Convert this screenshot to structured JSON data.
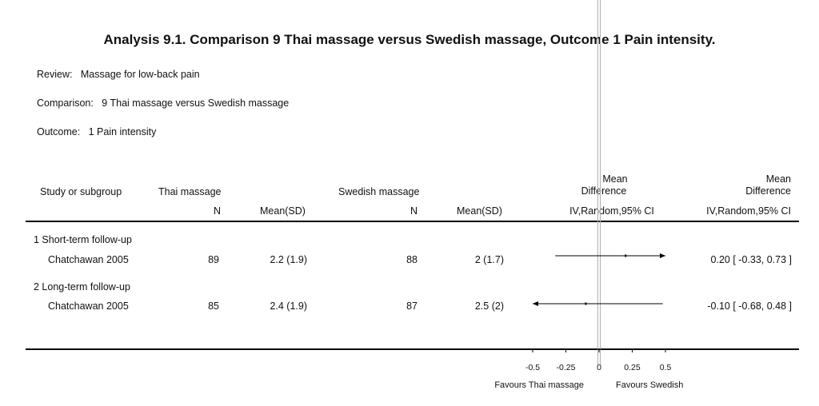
{
  "title": "Analysis 9.1.   Comparison 9 Thai massage versus Swedish massage, Outcome 1 Pain intensity.",
  "meta": {
    "review_label": "Review:",
    "review_value": "Massage for low-back pain",
    "comparison_label": "Comparison:",
    "comparison_value": "9 Thai massage versus Swedish massage",
    "outcome_label": "Outcome:",
    "outcome_value": "1 Pain intensity"
  },
  "headers": {
    "study": "Study or subgroup",
    "group1": "Thai massage",
    "group2": "Swedish massage",
    "n1": "N",
    "mean1": "Mean(SD)",
    "n2": "N",
    "mean2": "Mean(SD)",
    "md_plot_line1": "Mean",
    "md_plot_line2": "Difference",
    "md_plot_method": "IV,Random,95% CI",
    "md_text_line1": "Mean",
    "md_text_line2": "Difference",
    "md_text_method": "IV,Random,95% CI"
  },
  "subgroups": [
    {
      "label": "1 Short-term follow-up",
      "study": "Chatchawan 2005",
      "n1": "89",
      "mean1": "2.2 (1.9)",
      "n2": "88",
      "mean2": "2 (1.7)",
      "ci_text": "0.20 [ -0.33, 0.73 ]"
    },
    {
      "label": "2 Long-term follow-up",
      "study": "Chatchawan 2005",
      "n1": "85",
      "mean1": "2.4 (1.9)",
      "n2": "87",
      "mean2": "2.5 (2)",
      "ci_text": "-0.10 [ -0.68, 0.48 ]"
    }
  ],
  "axis": {
    "ticks": [
      "-0.5",
      "-0.25",
      "0",
      "0.25",
      "0.5"
    ],
    "favours_left": "Favours Thai massage",
    "favours_right": "Favours Swedish"
  },
  "chart_data": {
    "type": "scatter",
    "title": "Analysis 9.1.   Comparison 9 Thai massage versus Swedish massage, Outcome 1 Pain intensity.",
    "xlabel": "",
    "ylabel": "",
    "xlim": [
      -0.5,
      0.5
    ],
    "x_ticks": [
      -0.5,
      -0.25,
      0,
      0.25,
      0.5
    ],
    "series": [
      {
        "study": "Chatchawan 2005",
        "subgroup": "1 Short-term follow-up",
        "md": 0.2,
        "ci_low": -0.33,
        "ci_high": 0.73
      },
      {
        "study": "Chatchawan 2005",
        "subgroup": "2 Long-term follow-up",
        "md": -0.1,
        "ci_low": -0.68,
        "ci_high": 0.48
      }
    ]
  }
}
